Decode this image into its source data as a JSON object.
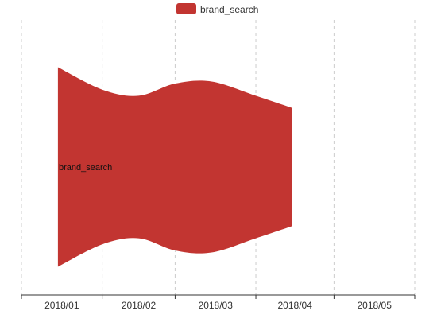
{
  "chart_data": {
    "type": "area",
    "subtype": "themeriver",
    "categories": [
      "2018/01",
      "2018/02",
      "2018/03",
      "2018/04",
      "2018/05"
    ],
    "series": [
      {
        "name": "brand_search",
        "color": "#c23531",
        "x": [
          "2018/01/15",
          "2018/02/01",
          "2018/02/15",
          "2018/03/01",
          "2018/03/15",
          "2018/04/01",
          "2018/04/15"
        ],
        "values": [
          0.98,
          0.76,
          0.7,
          0.82,
          0.84,
          0.7,
          0.58
        ]
      }
    ],
    "legend": {
      "position": "top-center",
      "items": [
        {
          "name": "brand_search",
          "color": "#c23531"
        }
      ]
    },
    "series_label": "brand_search",
    "grid": false,
    "vertical_split_lines": true
  }
}
